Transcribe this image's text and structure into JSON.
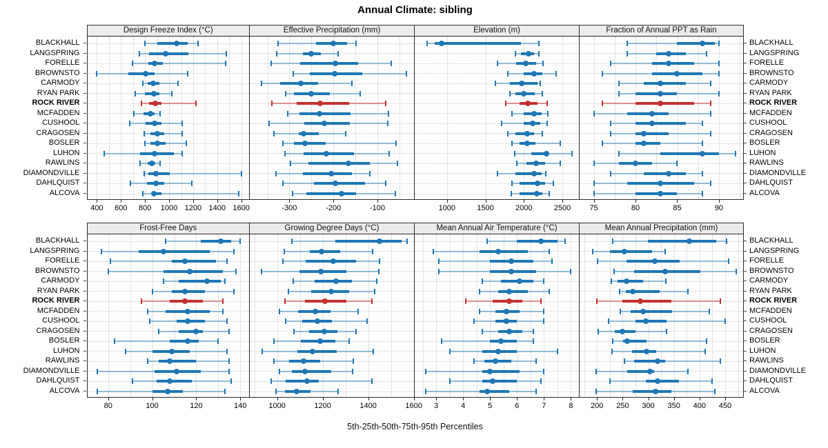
{
  "title": "Annual Climate: sibling",
  "caption": "5th-25th-50th-75th-95th Percentiles",
  "highlight_station": "ROCK RIVER",
  "colors": {
    "blue": "#1f77b4",
    "blue_whisker": "rgba(31,119,180,0.45)",
    "red": "#c53030",
    "red_whisker": "rgba(197,48,48,0.5)",
    "strip_bg": "#ececec",
    "grid": "#cccccc"
  },
  "stations": [
    "BLACKHALL",
    "LANGSPRING",
    "FORELLE",
    "BROWNSTO",
    "CARMODY",
    "RYAN PARK",
    "ROCK RIVER",
    "MCFADDEN",
    "CUSHOOL",
    "CRAGOSEN",
    "BOSLER",
    "LUHON",
    "RAWLINS",
    "DIAMONDVILLE",
    "DAHLQUIST",
    "ALCOVA"
  ],
  "chart_data": {
    "type": "dotplot-percentiles",
    "percentile_labels": [
      "5th",
      "25th",
      "50th",
      "75th",
      "95th"
    ],
    "note": "Each row shows 5th-25th-50th-75th-95th percentiles: thin whisker 5th-95th with end caps, thick bar 25th-75th, dot at median.",
    "panels": [
      {
        "title": "Design Freeze Index (°C)",
        "row": 0,
        "col": 0,
        "xlim": [
          320,
          1665
        ],
        "ticks": [
          400,
          600,
          800,
          1000,
          1200,
          1400,
          1600
        ],
        "grid_step": 100,
        "values": [
          [
            800,
            900,
            1060,
            1155,
            1240
          ],
          [
            755,
            832,
            970,
            1160,
            1477
          ],
          [
            696,
            828,
            880,
            946,
            1471
          ],
          [
            400,
            662,
            805,
            880,
            1155
          ],
          [
            781,
            823,
            870,
            918,
            1073
          ],
          [
            719,
            800,
            874,
            918,
            1022
          ],
          [
            770,
            832,
            884,
            937,
            1221
          ],
          [
            705,
            789,
            842,
            880,
            927
          ],
          [
            671,
            804,
            880,
            937,
            1111
          ],
          [
            794,
            842,
            902,
            959,
            1111
          ],
          [
            800,
            842,
            902,
            971,
            1145
          ],
          [
            459,
            757,
            880,
            1041,
            1111
          ],
          [
            757,
            819,
            855,
            884,
            927
          ],
          [
            794,
            827,
            893,
            1003,
            1600
          ],
          [
            681,
            814,
            893,
            959,
            1187
          ],
          [
            781,
            855,
            874,
            937,
            1578
          ]
        ]
      },
      {
        "title": "Effective Precipitation (mm)",
        "row": 0,
        "col": 1,
        "xlim": [
          -390,
          -17
        ],
        "ticks": [
          -300,
          -200,
          -100
        ],
        "grid_step": 50,
        "values": [
          [
            -325,
            -239,
            -201,
            -169,
            -149
          ],
          [
            -329,
            -269,
            -250,
            -228,
            -189
          ],
          [
            -342,
            -275,
            -196,
            -144,
            -68
          ],
          [
            -291,
            -253,
            -197,
            -135,
            -35
          ],
          [
            -364,
            -321,
            -274,
            -235,
            -158
          ],
          [
            -308,
            -289,
            -250,
            -208,
            -140
          ],
          [
            -340,
            -283,
            -230,
            -165,
            -81
          ],
          [
            -304,
            -277,
            -232,
            -161,
            -75
          ],
          [
            -346,
            -266,
            -220,
            -163,
            -77
          ],
          [
            -335,
            -278,
            -268,
            -234,
            -172
          ],
          [
            -315,
            -290,
            -264,
            -218,
            -58
          ],
          [
            -310,
            -268,
            -216,
            -153,
            -74
          ],
          [
            -298,
            -257,
            -166,
            -117,
            -55
          ],
          [
            -331,
            -270,
            -205,
            -158,
            -118
          ],
          [
            -315,
            -245,
            -195,
            -128,
            -82
          ],
          [
            -293,
            -262,
            -182,
            -148,
            -60
          ]
        ]
      },
      {
        "title": "Elevation (m)",
        "row": 0,
        "col": 2,
        "xlim": [
          580,
          2715
        ],
        "ticks": [
          1000,
          1500,
          2000,
          2500
        ],
        "grid_step": 500,
        "values": [
          [
            741,
            839,
            929,
            1962,
            2199
          ],
          [
            1893,
            1962,
            2060,
            2131,
            2199
          ],
          [
            1655,
            1902,
            2021,
            2155,
            2253
          ],
          [
            1792,
            2000,
            2131,
            2238,
            2423
          ],
          [
            1634,
            1821,
            1971,
            2179,
            2210
          ],
          [
            1821,
            1893,
            2000,
            2140,
            2238
          ],
          [
            1762,
            1940,
            2051,
            2179,
            2298
          ],
          [
            1842,
            2000,
            2128,
            2229,
            2310
          ],
          [
            1714,
            2000,
            2110,
            2214,
            2298
          ],
          [
            1792,
            1887,
            2045,
            2128,
            2238
          ],
          [
            1842,
            1940,
            2045,
            2149,
            2476
          ],
          [
            1881,
            2096,
            2289,
            2310,
            2625
          ],
          [
            1911,
            2030,
            2155,
            2274,
            2476
          ],
          [
            1655,
            1893,
            2131,
            2229,
            2280
          ],
          [
            1842,
            1940,
            2179,
            2280,
            2387
          ],
          [
            1833,
            1940,
            2164,
            2238,
            2328
          ]
        ]
      },
      {
        "title": "Fraction of Annual PPT as Rain",
        "row": 0,
        "col": 3,
        "xlim": [
          73.3,
          92.9
        ],
        "ticks": [
          75,
          80,
          85,
          90
        ],
        "grid_step": 2.5,
        "values": [
          [
            79,
            85,
            88,
            89.5,
            90
          ],
          [
            79,
            82.5,
            84,
            86,
            88.5
          ],
          [
            77,
            82,
            84,
            87,
            90
          ],
          [
            76,
            82,
            85,
            88,
            90
          ],
          [
            78,
            81,
            83,
            86,
            89
          ],
          [
            78,
            80,
            83,
            85,
            90
          ],
          [
            76,
            80,
            83,
            87,
            89
          ],
          [
            75,
            79,
            82,
            84,
            89
          ],
          [
            77,
            80,
            82,
            86,
            88
          ],
          [
            77,
            80,
            81,
            84,
            89
          ],
          [
            76,
            80,
            81,
            83,
            88
          ],
          [
            78,
            83,
            88,
            90,
            92
          ],
          [
            75,
            78,
            80,
            82,
            85
          ],
          [
            77,
            81,
            84,
            86,
            88
          ],
          [
            75,
            79,
            83,
            87,
            89
          ],
          [
            75,
            80,
            83,
            85,
            88
          ]
        ]
      },
      {
        "title": "Frost-Free Days",
        "row": 1,
        "col": 0,
        "xlim": [
          70.5,
          144
        ],
        "ticks": [
          80,
          100,
          120,
          140
        ],
        "grid_step": 10,
        "values": [
          [
            106,
            122,
            131,
            136,
            140
          ],
          [
            77,
            94,
            105,
            126,
            137
          ],
          [
            81,
            109,
            115,
            129,
            134
          ],
          [
            80,
            105,
            117,
            132,
            138
          ],
          [
            105,
            112,
            125,
            131,
            133
          ],
          [
            100,
            109,
            115,
            124,
            137
          ],
          [
            95,
            108,
            115,
            123,
            132
          ],
          [
            98,
            106,
            116,
            126,
            132
          ],
          [
            99,
            111,
            116,
            124,
            134
          ],
          [
            103,
            112,
            120,
            123,
            135
          ],
          [
            83,
            108,
            116,
            121,
            130
          ],
          [
            88,
            100,
            109,
            117,
            134
          ],
          [
            98,
            103,
            108,
            120,
            135
          ],
          [
            75,
            101,
            111,
            122,
            135
          ],
          [
            91,
            102,
            108,
            118,
            136
          ],
          [
            75,
            100,
            107,
            114,
            133
          ]
        ]
      },
      {
        "title": "Growing Degree Days (°C)",
        "row": 1,
        "col": 1,
        "xlim": [
          880,
          1601
        ],
        "ticks": [
          1000,
          1200,
          1400,
          1600
        ],
        "grid_step": 100,
        "values": [
          [
            1065,
            1255,
            1450,
            1545,
            1570
          ],
          [
            1032,
            1143,
            1195,
            1278,
            1419
          ],
          [
            1025,
            1126,
            1246,
            1347,
            1451
          ],
          [
            932,
            1097,
            1193,
            1304,
            1447
          ],
          [
            1072,
            1166,
            1258,
            1327,
            1437
          ],
          [
            1049,
            1150,
            1236,
            1317,
            1429
          ],
          [
            1035,
            1123,
            1210,
            1304,
            1417
          ],
          [
            1009,
            1092,
            1168,
            1233,
            1357
          ],
          [
            1037,
            1110,
            1178,
            1240,
            1395
          ],
          [
            1075,
            1140,
            1208,
            1266,
            1347
          ],
          [
            985,
            1103,
            1190,
            1256,
            1317
          ],
          [
            935,
            1088,
            1156,
            1263,
            1421
          ],
          [
            985,
            1052,
            1116,
            1190,
            1334
          ],
          [
            1009,
            1065,
            1123,
            1236,
            1331
          ],
          [
            975,
            1037,
            1130,
            1183,
            1415
          ],
          [
            995,
            1035,
            1087,
            1146,
            1268
          ]
        ]
      },
      {
        "title": "Mean Annual Air Temperature (°C)",
        "row": 1,
        "col": 2,
        "xlim": [
          2.2,
          8.3
        ],
        "ticks": [
          3,
          4,
          5,
          6,
          7,
          8
        ],
        "grid_step": 0.5,
        "values": [
          [
            4.9,
            6.0,
            6.9,
            7.5,
            7.8
          ],
          [
            2.9,
            4.6,
            5.3,
            6.4,
            7.2
          ],
          [
            3.1,
            5.0,
            5.8,
            6.6,
            7.3
          ],
          [
            3.1,
            5.0,
            5.8,
            6.7,
            8.0
          ],
          [
            4.7,
            5.4,
            6.1,
            6.6,
            7.0
          ],
          [
            4.6,
            5.3,
            5.7,
            6.4,
            7.2
          ],
          [
            4.1,
            5.1,
            5.7,
            6.2,
            6.9
          ],
          [
            4.6,
            5.2,
            5.6,
            6.1,
            7.0
          ],
          [
            4.4,
            5.2,
            5.6,
            6.0,
            7.0
          ],
          [
            4.7,
            5.3,
            5.7,
            6.2,
            6.6
          ],
          [
            3.2,
            5.0,
            5.4,
            6.0,
            6.6
          ],
          [
            3.5,
            4.7,
            5.3,
            6.0,
            7.5
          ],
          [
            4.4,
            4.8,
            5.2,
            5.8,
            6.7
          ],
          [
            2.6,
            4.7,
            5.0,
            6.1,
            7.0
          ],
          [
            3.5,
            4.7,
            5.1,
            6.0,
            6.9
          ],
          [
            2.6,
            4.6,
            4.9,
            5.7,
            6.7
          ]
        ]
      },
      {
        "title": "Mean Annual Precipitation (mm)",
        "row": 1,
        "col": 3,
        "xlim": [
          166,
          485
        ],
        "ticks": [
          200,
          250,
          300,
          350,
          400,
          450
        ],
        "grid_step": 25,
        "values": [
          [
            231,
            299,
            380,
            432,
            453
          ],
          [
            192,
            225,
            254,
            308,
            333
          ],
          [
            201,
            257,
            313,
            361,
            457
          ],
          [
            233,
            272,
            333,
            402,
            471
          ],
          [
            228,
            240,
            257,
            290,
            334
          ],
          [
            244,
            256,
            269,
            322,
            377
          ],
          [
            200,
            249,
            284,
            345,
            440
          ],
          [
            245,
            265,
            290,
            346,
            419
          ],
          [
            222,
            275,
            295,
            335,
            450
          ],
          [
            202,
            235,
            250,
            275,
            336
          ],
          [
            231,
            251,
            259,
            297,
            413
          ],
          [
            229,
            268,
            297,
            315,
            411
          ],
          [
            253,
            272,
            318,
            333,
            440
          ],
          [
            198,
            259,
            303,
            312,
            377
          ],
          [
            225,
            295,
            318,
            360,
            425
          ],
          [
            198,
            269,
            314,
            345,
            430
          ]
        ]
      }
    ]
  }
}
